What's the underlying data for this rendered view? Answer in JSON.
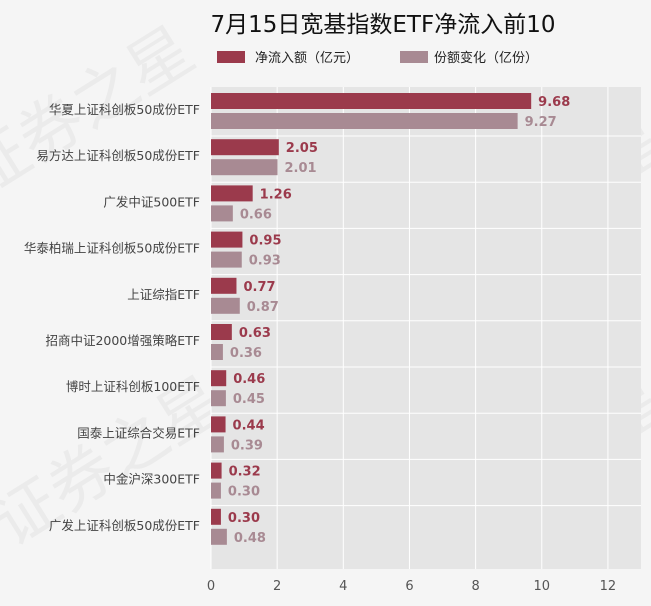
{
  "chart_data": {
    "type": "bar",
    "orientation": "horizontal",
    "title": "7月15日宽基指数ETF净流入前10",
    "categories": [
      "华夏上证科创板50成份ETF",
      "易方达上证科创板50成份ETF",
      "广发中证500ETF",
      "华泰柏瑞上证科创板50成份ETF",
      "上证综指ETF",
      "招商中证2000增强策略ETF",
      "博时上证科创板100ETF",
      "国泰上证综合交易ETF",
      "中金沪深300ETF",
      "广发上证科创板50成份ETF"
    ],
    "series": [
      {
        "name": "净流入额（亿元）",
        "color": "#9b3a4c",
        "values": [
          9.68,
          2.05,
          1.26,
          0.95,
          0.77,
          0.63,
          0.46,
          0.44,
          0.32,
          0.3
        ],
        "value_labels": [
          "9.68",
          "2.05",
          "1.26",
          "0.95",
          "0.77",
          "0.63",
          "0.46",
          "0.44",
          "0.32",
          "0.30"
        ]
      },
      {
        "name": "份额变化（亿份）",
        "color": "#a88a93",
        "values": [
          9.27,
          2.01,
          0.66,
          0.93,
          0.87,
          0.36,
          0.45,
          0.39,
          0.3,
          0.48
        ],
        "value_labels": [
          "9.27",
          "2.01",
          "0.66",
          "0.93",
          "0.87",
          "0.36",
          "0.45",
          "0.39",
          "0.30",
          "0.48"
        ]
      }
    ],
    "xlim": [
      0,
      13
    ],
    "xticks": [
      0,
      2,
      4,
      6,
      8,
      10,
      12
    ],
    "xtick_labels": [
      "0",
      "2",
      "4",
      "6",
      "8",
      "10",
      "12"
    ],
    "grid": true,
    "legend_position": "top",
    "plot_background": "#e5e5e5",
    "watermark_text": "证券之星"
  }
}
